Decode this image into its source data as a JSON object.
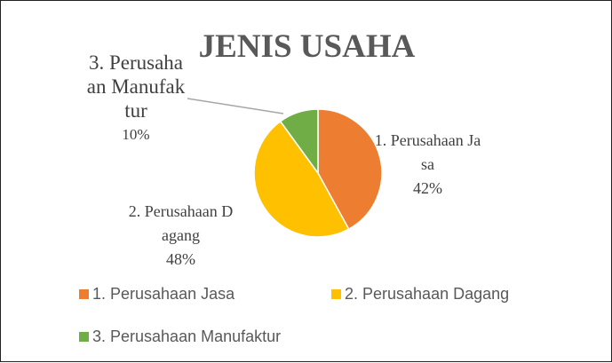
{
  "chart_data": {
    "type": "pie",
    "title": "JENIS USAHA",
    "categories": [
      "1. Perusahaan Jasa",
      "2. Perusahaan Dagang",
      "3. Perusahaan Manufaktur"
    ],
    "values": [
      42,
      48,
      10
    ],
    "value_labels": [
      "42%",
      "48%",
      "10%"
    ],
    "colors": [
      "#ed7d31",
      "#ffc000",
      "#70ad47"
    ],
    "legend": "bottom"
  }
}
